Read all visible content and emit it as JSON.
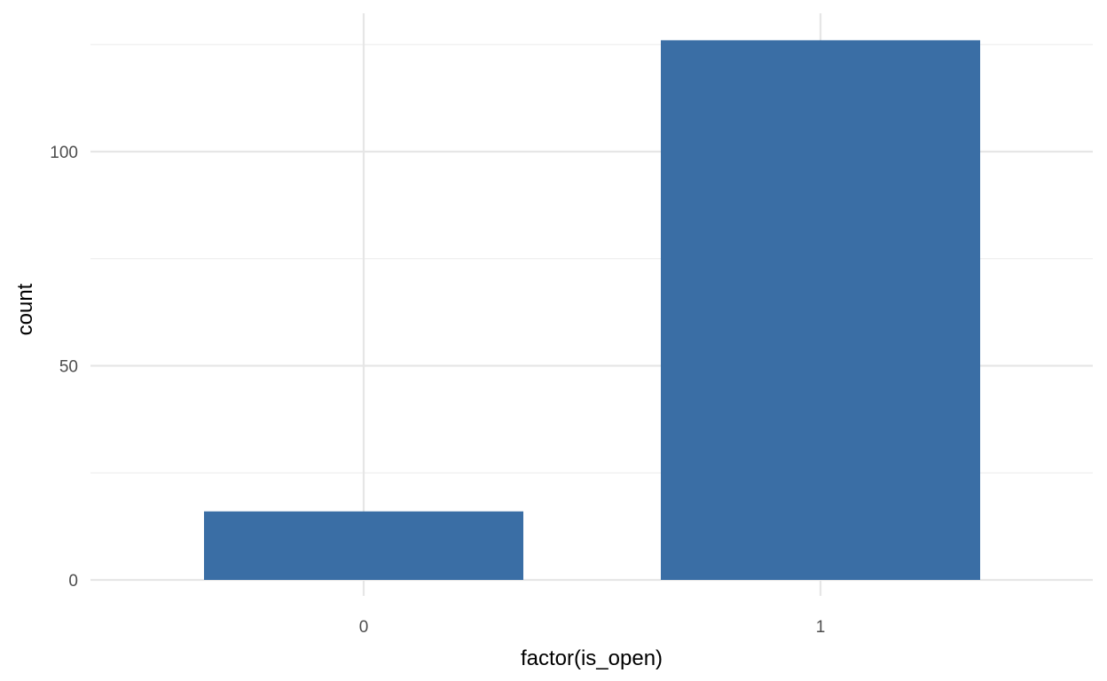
{
  "chart_data": {
    "type": "bar",
    "categories": [
      "0",
      "1"
    ],
    "values": [
      16,
      126
    ],
    "xlabel": "factor(is_open)",
    "ylabel": "count",
    "ylim": [
      0,
      132
    ],
    "y_ticks": [
      0,
      50,
      100
    ],
    "y_minor_ticks": [
      25,
      75,
      125
    ],
    "grid": true,
    "legend": "none",
    "bar_color": "#3A6EA5",
    "grid_color": "#E6E6E6",
    "background_color": "#FFFFFF"
  }
}
